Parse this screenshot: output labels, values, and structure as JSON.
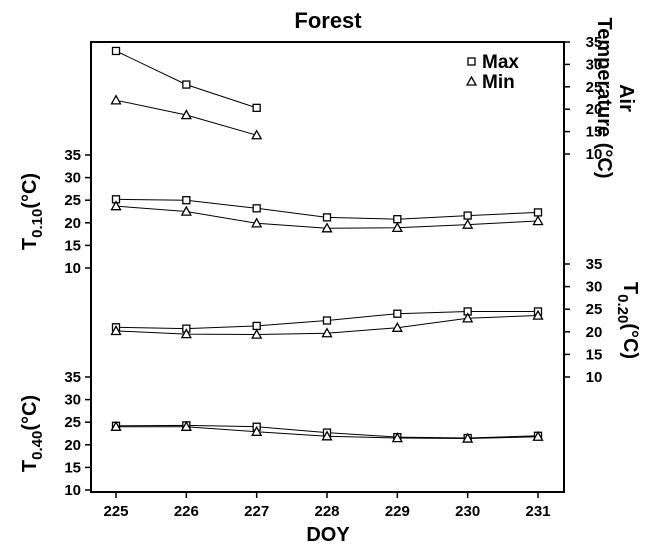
{
  "chart_data": {
    "type": "line",
    "title": "Forest",
    "xlabel": "DOY",
    "x": [
      225,
      226,
      227,
      228,
      229,
      230,
      231
    ],
    "x_ticks": [
      "225",
      "226",
      "227",
      "228",
      "229",
      "230",
      "231"
    ],
    "legend": {
      "position": "top-right",
      "entries": [
        {
          "name": "Max",
          "marker": "square"
        },
        {
          "name": "Min",
          "marker": "triangle"
        }
      ]
    },
    "panels": [
      {
        "id": "air",
        "axis_side": "right",
        "ylabel_line1": "Air",
        "ylabel_line2": "Temperature (°C)",
        "y_ticks": [
          10,
          15,
          20,
          25,
          30,
          35
        ],
        "ylim": [
          10,
          35
        ],
        "series": [
          {
            "name": "Max",
            "marker": "square",
            "x": [
              225,
              226,
              227
            ],
            "y": [
              33,
              25.5,
              20.3
            ]
          },
          {
            "name": "Min",
            "marker": "triangle",
            "x": [
              225,
              226,
              227
            ],
            "y": [
              22.0,
              18.7,
              14.2
            ]
          }
        ]
      },
      {
        "id": "t010",
        "axis_side": "left",
        "ylabel_base": "T",
        "ylabel_sub": "0.10",
        "ylabel_unit": "(°C)",
        "y_ticks": [
          10,
          15,
          20,
          25,
          30,
          35
        ],
        "ylim": [
          10,
          35
        ],
        "series": [
          {
            "name": "Max",
            "marker": "square",
            "x": [
              225,
              226,
              227,
              228,
              229,
              230,
              231
            ],
            "y": [
              25.2,
              25.0,
              23.2,
              21.2,
              20.8,
              21.6,
              22.3
            ]
          },
          {
            "name": "Min",
            "marker": "triangle",
            "x": [
              225,
              226,
              227,
              228,
              229,
              230,
              231
            ],
            "y": [
              23.7,
              22.5,
              19.9,
              18.8,
              18.9,
              19.6,
              20.4
            ]
          }
        ]
      },
      {
        "id": "t020",
        "axis_side": "right",
        "ylabel_base": "T",
        "ylabel_sub": "0.20",
        "ylabel_unit": "(°C)",
        "y_ticks": [
          10,
          15,
          20,
          25,
          30,
          35
        ],
        "ylim": [
          10,
          35
        ],
        "series": [
          {
            "name": "Max",
            "marker": "square",
            "x": [
              225,
              226,
              227,
              228,
              229,
              230,
              231
            ],
            "y": [
              21.0,
              20.7,
              21.3,
              22.5,
              24.0,
              24.5,
              24.5
            ]
          },
          {
            "name": "Min",
            "marker": "triangle",
            "x": [
              225,
              226,
              227,
              228,
              229,
              230,
              231
            ],
            "y": [
              20.2,
              19.5,
              19.4,
              19.7,
              20.9,
              23.0,
              23.6
            ]
          }
        ]
      },
      {
        "id": "t040",
        "axis_side": "left",
        "ylabel_base": "T",
        "ylabel_sub": "0.40",
        "ylabel_unit": "(°C)",
        "y_ticks": [
          10,
          15,
          20,
          25,
          30,
          35
        ],
        "ylim": [
          10,
          35
        ],
        "series": [
          {
            "name": "Max",
            "marker": "square",
            "x": [
              225,
              226,
              227,
              228,
              229,
              230,
              231
            ],
            "y": [
              24.2,
              24.3,
              24.0,
              22.7,
              21.7,
              21.5,
              22.0
            ]
          },
          {
            "name": "Min",
            "marker": "triangle",
            "x": [
              225,
              226,
              227,
              228,
              229,
              230,
              231
            ],
            "y": [
              24.0,
              24.0,
              22.9,
              21.9,
              21.5,
              21.4,
              21.8
            ]
          }
        ]
      }
    ]
  }
}
